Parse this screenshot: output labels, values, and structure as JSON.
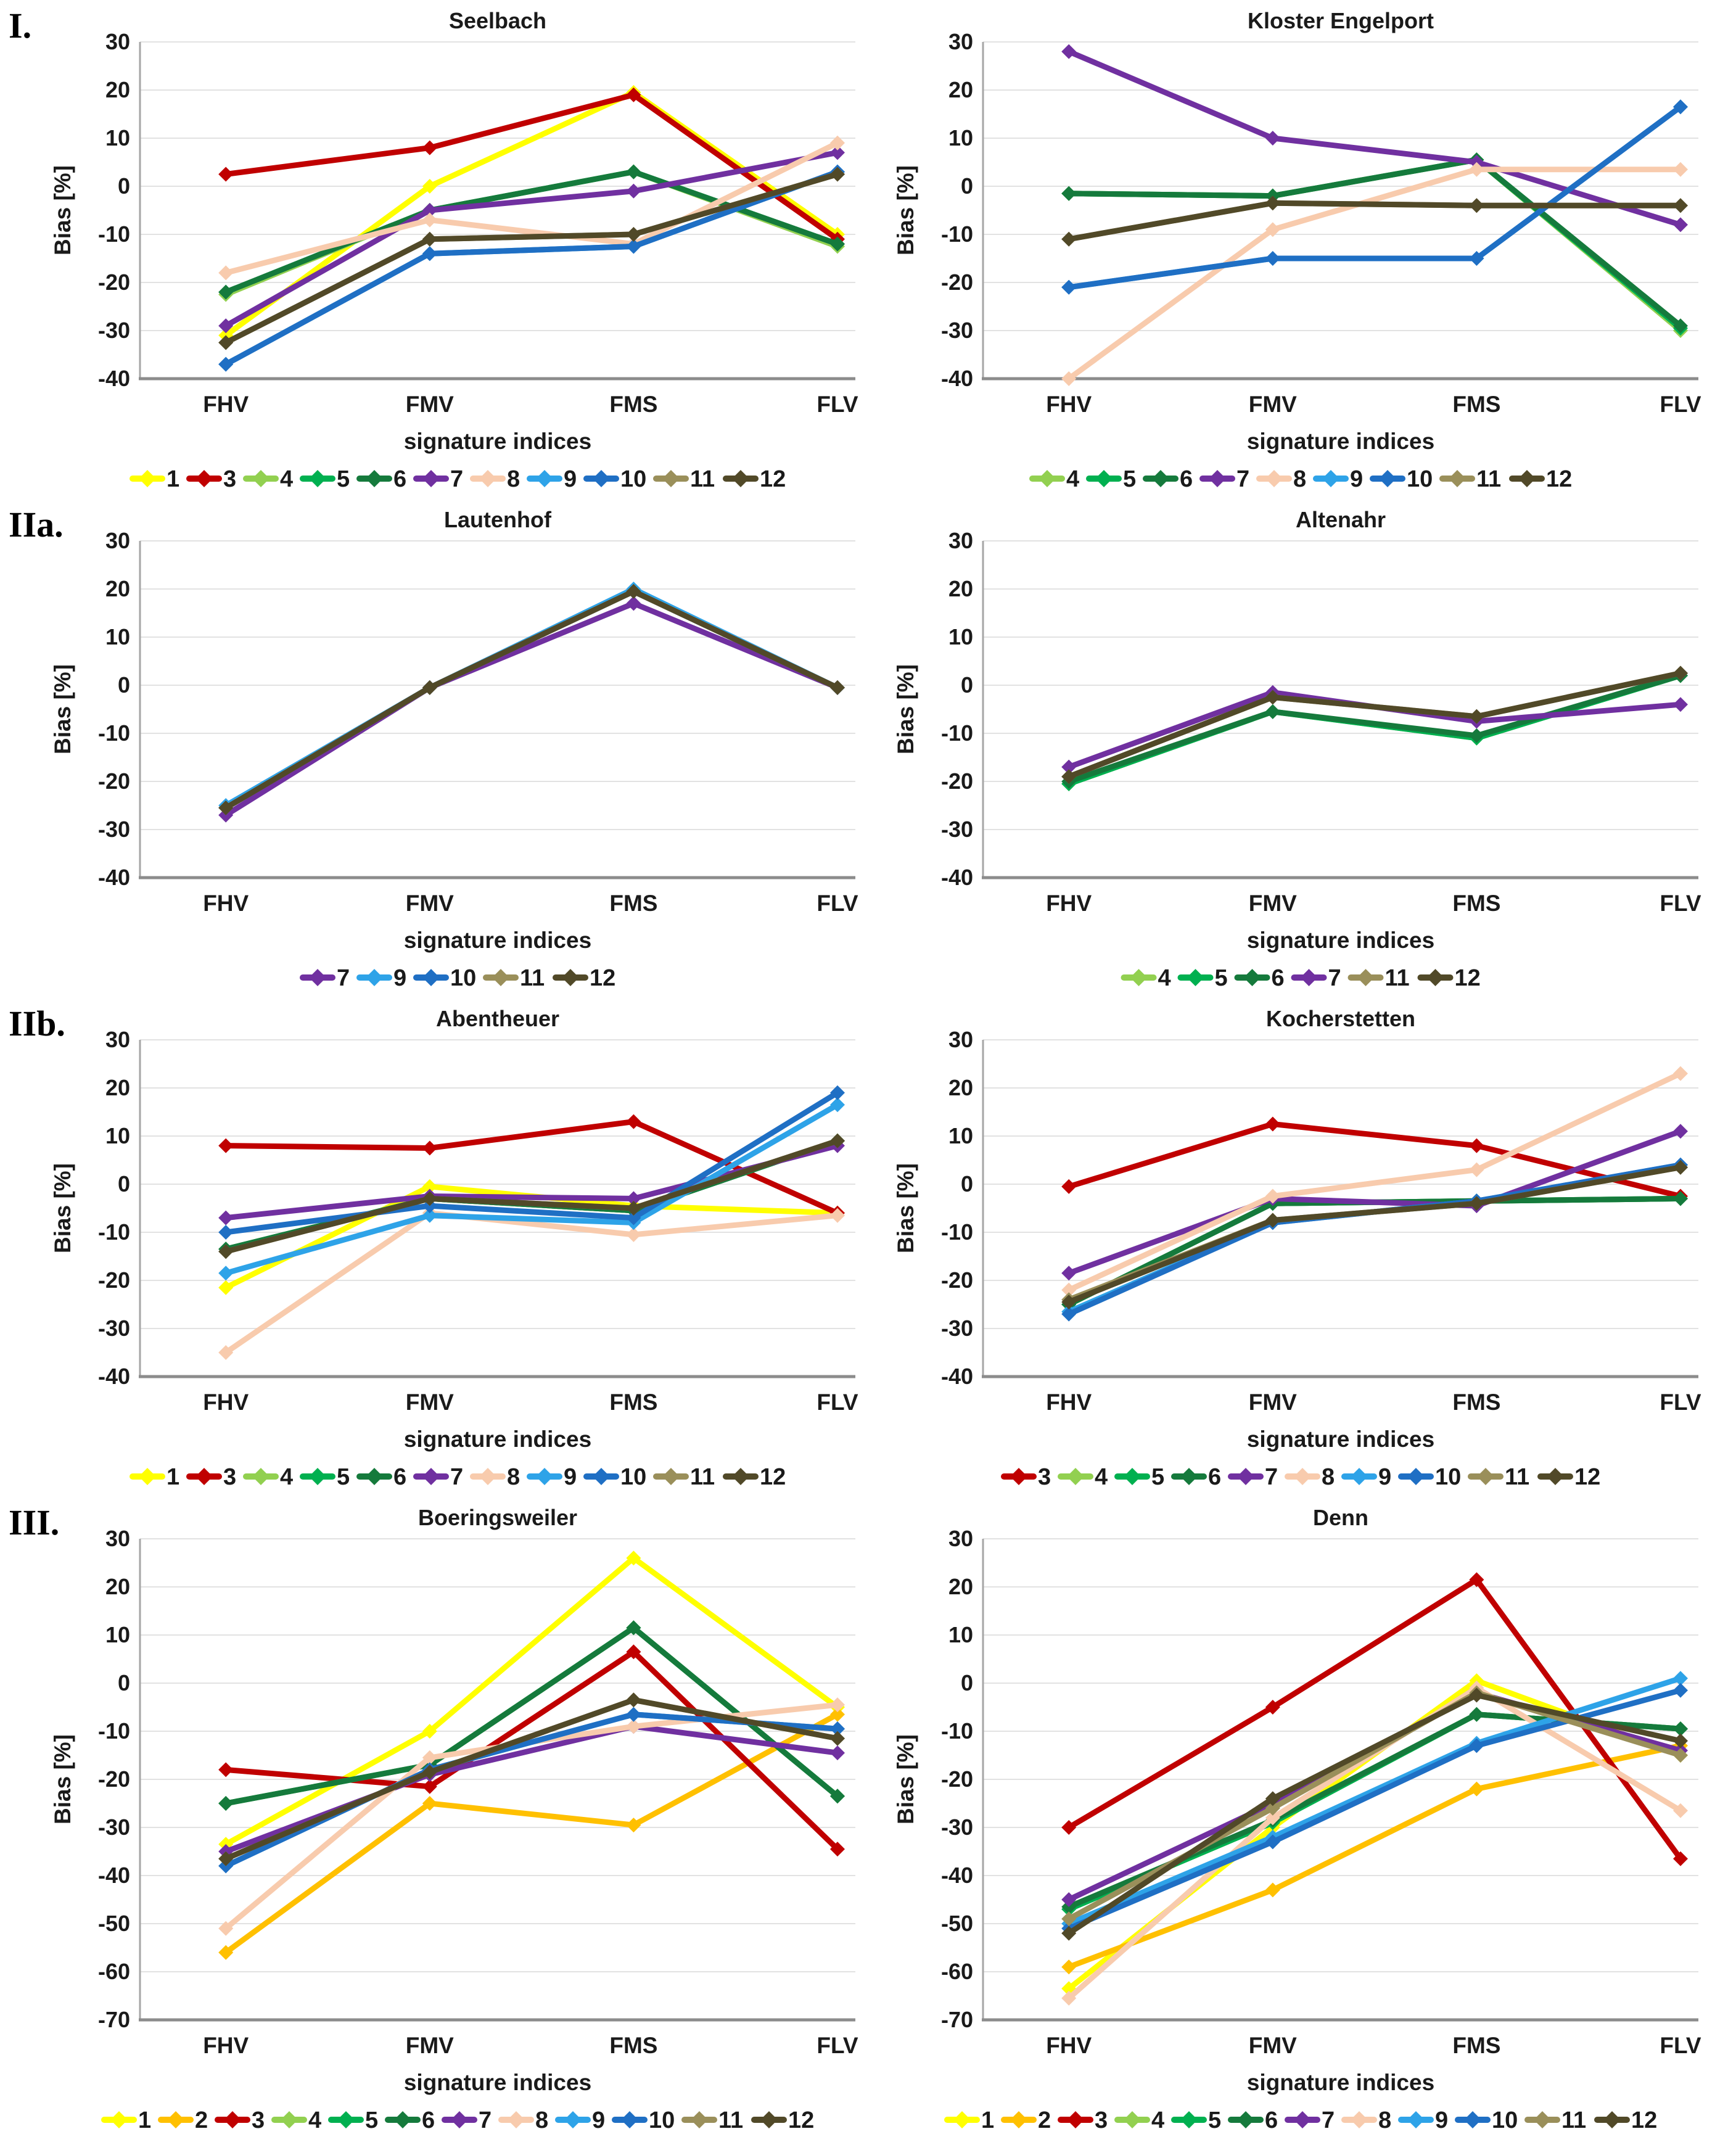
{
  "page": {
    "background": "#FFFFFF"
  },
  "layout": {
    "rows": [
      {
        "label": "I.",
        "charts": [
          0,
          1
        ]
      },
      {
        "label": "IIa.",
        "charts": [
          2,
          3
        ]
      },
      {
        "label": "IIb.",
        "charts": [
          4,
          5
        ]
      },
      {
        "label": "III.",
        "charts": [
          6,
          7
        ]
      }
    ]
  },
  "series_colors": {
    "1": "#FFFF00",
    "2": "#FFC000",
    "3": "#C00000",
    "4": "#92D050",
    "5": "#00B050",
    "6": "#157A3C",
    "7": "#7030A0",
    "8": "#F8CBAD",
    "9": "#2EA3E8",
    "10": "#1F6FC4",
    "11": "#9A8F5A",
    "12": "#514928"
  },
  "chart_data": [
    {
      "type": "line",
      "title": "Seelbach",
      "categories": [
        "FHV",
        "FMV",
        "FMS",
        "FLV"
      ],
      "xlabel": "signature indices",
      "ylabel": "Bias [%]",
      "ylim": [
        -40,
        30
      ],
      "ytick_step": 10,
      "grid": true,
      "legend_position": "bottom",
      "series": [
        {
          "name": "1",
          "values": [
            -31,
            0,
            19.5,
            -10
          ]
        },
        {
          "name": "3",
          "values": [
            2.5,
            8,
            19,
            -11
          ]
        },
        {
          "name": "4",
          "values": [
            -22.5,
            -5,
            3,
            -12.5
          ]
        },
        {
          "name": "5",
          "values": [
            -22,
            -5,
            3,
            -12
          ]
        },
        {
          "name": "6",
          "values": [
            -22,
            -5,
            3,
            -12
          ]
        },
        {
          "name": "7",
          "values": [
            -29,
            -5,
            -1,
            7
          ]
        },
        {
          "name": "8",
          "values": [
            -18,
            -7,
            -12,
            9
          ]
        },
        {
          "name": "9",
          "values": [
            -37,
            -14,
            -12.5,
            3
          ]
        },
        {
          "name": "10",
          "values": [
            -37,
            -14,
            -12.5,
            3
          ]
        },
        {
          "name": "11",
          "values": [
            -32.5,
            -11,
            -10,
            2.5
          ]
        },
        {
          "name": "12",
          "values": [
            -32.5,
            -11,
            -10,
            2.5
          ]
        }
      ]
    },
    {
      "type": "line",
      "title": "Kloster Engelport",
      "categories": [
        "FHV",
        "FMV",
        "FMS",
        "FLV"
      ],
      "xlabel": "signature indices",
      "ylabel": "Bias [%]",
      "ylim": [
        -40,
        30
      ],
      "ytick_step": 10,
      "grid": true,
      "legend_position": "bottom",
      "series": [
        {
          "name": "4",
          "values": [
            -1.5,
            -2,
            5.5,
            -30
          ]
        },
        {
          "name": "5",
          "values": [
            -1.5,
            -2,
            5.5,
            -29.5
          ]
        },
        {
          "name": "6",
          "values": [
            -1.5,
            -2,
            5.5,
            -29
          ]
        },
        {
          "name": "7",
          "values": [
            28,
            10,
            5,
            -8
          ]
        },
        {
          "name": "8",
          "values": [
            -40,
            -9,
            3.5,
            3.5
          ]
        },
        {
          "name": "9",
          "values": [
            -21,
            -15,
            -15,
            16.5
          ]
        },
        {
          "name": "10",
          "values": [
            -21,
            -15,
            -15,
            16.5
          ]
        },
        {
          "name": "11",
          "values": [
            -11,
            -3.5,
            -4,
            -4
          ]
        },
        {
          "name": "12",
          "values": [
            -11,
            -3.5,
            -4,
            -4
          ]
        }
      ]
    },
    {
      "type": "line",
      "title": "Lautenhof",
      "categories": [
        "FHV",
        "FMV",
        "FMS",
        "FLV"
      ],
      "xlabel": "signature indices",
      "ylabel": "Bias [%]",
      "ylim": [
        -40,
        30
      ],
      "ytick_step": 10,
      "grid": true,
      "legend_position": "bottom",
      "series": [
        {
          "name": "7",
          "values": [
            -27,
            -0.5,
            17,
            -0.5
          ]
        },
        {
          "name": "9",
          "values": [
            -25,
            -0.5,
            20,
            -0.5
          ]
        },
        {
          "name": "10",
          "values": [
            -25.5,
            -0.5,
            19.5,
            -0.5
          ]
        },
        {
          "name": "11",
          "values": [
            -25.5,
            -0.5,
            19.5,
            -0.5
          ]
        },
        {
          "name": "12",
          "values": [
            -25.5,
            -0.5,
            19.5,
            -0.5
          ]
        }
      ]
    },
    {
      "type": "line",
      "title": "Altenahr",
      "categories": [
        "FHV",
        "FMV",
        "FMS",
        "FLV"
      ],
      "xlabel": "signature indices",
      "ylabel": "Bias [%]",
      "ylim": [
        -40,
        30
      ],
      "ytick_step": 10,
      "grid": true,
      "legend_position": "bottom",
      "series": [
        {
          "name": "4",
          "values": [
            -20.5,
            -5.5,
            -11,
            2
          ]
        },
        {
          "name": "5",
          "values": [
            -20.5,
            -5.5,
            -11,
            2
          ]
        },
        {
          "name": "6",
          "values": [
            -20,
            -5.5,
            -10.5,
            2
          ]
        },
        {
          "name": "7",
          "values": [
            -17,
            -1.5,
            -7.5,
            -4
          ]
        },
        {
          "name": "11",
          "values": [
            -19,
            -2.5,
            -6.5,
            2.5
          ]
        },
        {
          "name": "12",
          "values": [
            -19,
            -2.5,
            -6.5,
            2.5
          ]
        }
      ]
    },
    {
      "type": "line",
      "title": "Abentheuer",
      "categories": [
        "FHV",
        "FMV",
        "FMS",
        "FLV"
      ],
      "xlabel": "signature indices",
      "ylabel": "Bias [%]",
      "ylim": [
        -40,
        30
      ],
      "ytick_step": 10,
      "grid": true,
      "legend_position": "bottom",
      "series": [
        {
          "name": "1",
          "values": [
            -21.5,
            -0.5,
            -4.5,
            -6
          ]
        },
        {
          "name": "3",
          "values": [
            8,
            7.5,
            13,
            -6
          ]
        },
        {
          "name": "4",
          "values": [
            -13.5,
            -3,
            -5.5,
            9
          ]
        },
        {
          "name": "5",
          "values": [
            -13.5,
            -3,
            -5.5,
            9
          ]
        },
        {
          "name": "6",
          "values": [
            -13.5,
            -3,
            -5.5,
            9
          ]
        },
        {
          "name": "7",
          "values": [
            -7,
            -2.5,
            -3,
            8
          ]
        },
        {
          "name": "8",
          "values": [
            -35,
            -6,
            -10.5,
            -6.5
          ]
        },
        {
          "name": "9",
          "values": [
            -18.5,
            -6.5,
            -8,
            16.5
          ]
        },
        {
          "name": "10",
          "values": [
            -10,
            -4.5,
            -7,
            19
          ]
        },
        {
          "name": "11",
          "values": [
            -14,
            -3,
            -5,
            9
          ]
        },
        {
          "name": "12",
          "values": [
            -14,
            -3,
            -5,
            9
          ]
        }
      ]
    },
    {
      "type": "line",
      "title": "Kocherstetten",
      "categories": [
        "FHV",
        "FMV",
        "FMS",
        "FLV"
      ],
      "xlabel": "signature indices",
      "ylabel": "Bias [%]",
      "ylim": [
        -40,
        30
      ],
      "ytick_step": 10,
      "grid": true,
      "legend_position": "bottom",
      "series": [
        {
          "name": "3",
          "values": [
            -0.5,
            12.5,
            8,
            -2.5
          ]
        },
        {
          "name": "4",
          "values": [
            -25,
            -4,
            -3.5,
            -3
          ]
        },
        {
          "name": "5",
          "values": [
            -25,
            -4,
            -3.5,
            -3
          ]
        },
        {
          "name": "6",
          "values": [
            -25,
            -4,
            -3.5,
            -3
          ]
        },
        {
          "name": "7",
          "values": [
            -18.5,
            -3,
            -4.5,
            11
          ]
        },
        {
          "name": "8",
          "values": [
            -22,
            -2.5,
            3,
            23
          ]
        },
        {
          "name": "9",
          "values": [
            -26.5,
            -8,
            -3.5,
            4
          ]
        },
        {
          "name": "10",
          "values": [
            -27,
            -8,
            -3.5,
            4
          ]
        },
        {
          "name": "11",
          "values": [
            -24,
            -7.5,
            -4,
            3.5
          ]
        },
        {
          "name": "12",
          "values": [
            -24.5,
            -7.5,
            -4,
            3.5
          ]
        }
      ]
    },
    {
      "type": "line",
      "title": "Boeringsweiler",
      "categories": [
        "FHV",
        "FMV",
        "FMS",
        "FLV"
      ],
      "xlabel": "signature indices",
      "ylabel": "Bias [%]",
      "ylim": [
        -70,
        30
      ],
      "ytick_step": 10,
      "grid": true,
      "legend_position": "bottom",
      "series": [
        {
          "name": "1",
          "values": [
            -33.5,
            -10,
            26,
            -5
          ]
        },
        {
          "name": "2",
          "values": [
            -56,
            -25,
            -29.5,
            -6.5
          ]
        },
        {
          "name": "3",
          "values": [
            -18,
            -21.5,
            6.5,
            -34.5
          ]
        },
        {
          "name": "4",
          "values": [
            -25,
            -17,
            11.5,
            -23.5
          ]
        },
        {
          "name": "5",
          "values": [
            -25,
            -17,
            11.5,
            -23.5
          ]
        },
        {
          "name": "6",
          "values": [
            -25,
            -17,
            11.5,
            -23.5
          ]
        },
        {
          "name": "7",
          "values": [
            -35,
            -19,
            -9,
            -14.5
          ]
        },
        {
          "name": "8",
          "values": [
            -51,
            -15.5,
            -9,
            -4.5
          ]
        },
        {
          "name": "9",
          "values": [
            -38,
            -18,
            -6.5,
            -9.5
          ]
        },
        {
          "name": "10",
          "values": [
            -38,
            -18,
            -6.5,
            -9.5
          ]
        },
        {
          "name": "11",
          "values": [
            -36.5,
            -18.5,
            -3.5,
            -11.5
          ]
        },
        {
          "name": "12",
          "values": [
            -36.5,
            -18.5,
            -3.5,
            -11.5
          ]
        }
      ]
    },
    {
      "type": "line",
      "title": "Denn",
      "categories": [
        "FHV",
        "FMV",
        "FMS",
        "FLV"
      ],
      "xlabel": "signature indices",
      "ylabel": "Bias [%]",
      "ylim": [
        -70,
        30
      ],
      "ytick_step": 10,
      "grid": true,
      "legend_position": "bottom",
      "series": [
        {
          "name": "1",
          "values": [
            -63.5,
            -30,
            0.5,
            -15
          ]
        },
        {
          "name": "2",
          "values": [
            -59,
            -43,
            -22,
            -13
          ]
        },
        {
          "name": "3",
          "values": [
            -30,
            -5,
            21.5,
            -36.5
          ]
        },
        {
          "name": "4",
          "values": [
            -47,
            -29,
            -6.5,
            -9.5
          ]
        },
        {
          "name": "5",
          "values": [
            -47,
            -29,
            -6.5,
            -9.5
          ]
        },
        {
          "name": "6",
          "values": [
            -46.5,
            -28.5,
            -6.5,
            -9.5
          ]
        },
        {
          "name": "7",
          "values": [
            -45,
            -25,
            -2,
            -14
          ]
        },
        {
          "name": "8",
          "values": [
            -65.5,
            -28,
            -1,
            -26.5
          ]
        },
        {
          "name": "9",
          "values": [
            -50,
            -32,
            -12.5,
            1
          ]
        },
        {
          "name": "10",
          "values": [
            -51,
            -33,
            -13,
            -1.5
          ]
        },
        {
          "name": "11",
          "values": [
            -49,
            -26,
            -2,
            -15
          ]
        },
        {
          "name": "12",
          "values": [
            -52,
            -24,
            -2.5,
            -12
          ]
        }
      ]
    }
  ]
}
